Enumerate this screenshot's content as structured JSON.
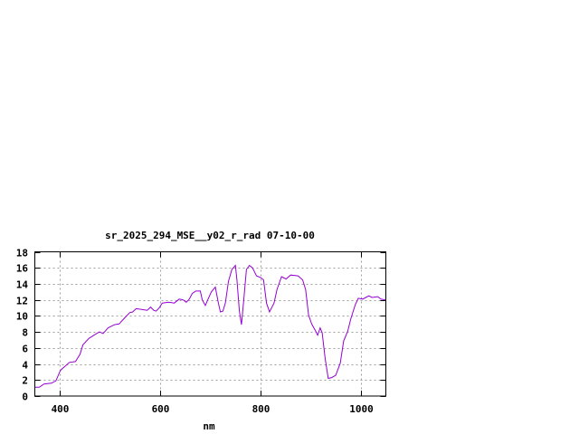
{
  "chart_data": {
    "type": "line",
    "title": "sr_2025_294_MSE__y02_r_rad 07-10-00",
    "xlabel": "nm",
    "ylabel": "",
    "xlim": [
      350,
      1050
    ],
    "ylim": [
      0,
      18
    ],
    "x_ticks": [
      400,
      600,
      800,
      1000
    ],
    "y_ticks": [
      0,
      2,
      4,
      6,
      8,
      10,
      12,
      14,
      16,
      18
    ],
    "grid": true,
    "legend": "none",
    "line_color": "#9400d3",
    "series": [
      {
        "x": [
          350,
          359,
          368,
          383,
          392,
          401,
          419,
          431,
          440,
          446,
          458,
          473,
          479,
          486,
          496,
          509,
          518,
          527,
          539,
          545,
          552,
          563,
          574,
          581,
          587,
          592,
          598,
          604,
          617,
          628,
          638,
          646,
          652,
          658,
          664,
          671,
          680,
          684,
          690,
          694,
          702,
          710,
          716,
          720,
          725,
          730,
          736,
          743,
          750,
          753,
          758,
          762,
          767,
          772,
          778,
          784,
          792,
          800,
          806,
          812,
          818,
          827,
          833,
          842,
          851,
          860,
          875,
          884,
          890,
          896,
          902,
          910,
          914,
          919,
          923,
          929,
          935,
          942,
          950,
          959,
          966,
          974,
          980,
          989,
          995,
          1004,
          1010,
          1016,
          1022,
          1034,
          1040,
          1049
        ],
        "y": [
          1.1,
          1.1,
          1.5,
          1.6,
          1.9,
          3.2,
          4.2,
          4.3,
          5.2,
          6.4,
          7.2,
          7.8,
          8.0,
          7.8,
          8.5,
          8.9,
          9.0,
          9.6,
          10.4,
          10.5,
          10.9,
          10.8,
          10.7,
          11.1,
          10.7,
          10.6,
          11.0,
          11.6,
          11.7,
          11.6,
          12.1,
          12.0,
          11.7,
          12.1,
          12.8,
          13.1,
          13.1,
          12.0,
          11.3,
          11.9,
          13.0,
          13.6,
          11.6,
          10.5,
          10.6,
          11.6,
          14.3,
          15.8,
          16.3,
          14.5,
          10.6,
          8.9,
          12.2,
          15.8,
          16.3,
          16.0,
          15.0,
          14.8,
          14.5,
          11.6,
          10.5,
          11.6,
          13.3,
          14.9,
          14.6,
          15.1,
          15.0,
          14.5,
          13.3,
          10.1,
          9.0,
          8.1,
          7.6,
          8.5,
          7.9,
          4.7,
          2.2,
          2.3,
          2.6,
          4.1,
          6.9,
          8.1,
          9.6,
          11.4,
          12.2,
          12.1,
          12.3,
          12.5,
          12.3,
          12.4,
          12.1,
          12.0
        ]
      }
    ]
  }
}
